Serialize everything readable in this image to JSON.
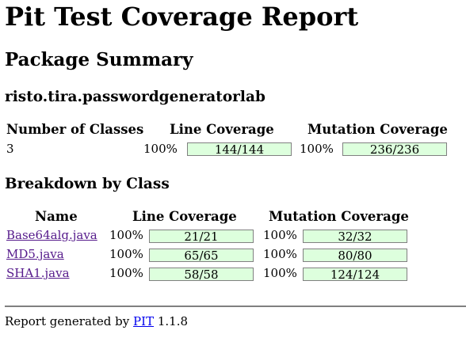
{
  "title": "Pit Test Coverage Report",
  "package_summary_heading": "Package Summary",
  "package_name": "risto.tira.passwordgeneratorlab",
  "summary": {
    "headers": {
      "classes": "Number of Classes",
      "line": "Line Coverage",
      "mutation": "Mutation Coverage"
    },
    "num_classes": "3",
    "line_percent": "100%",
    "line_ratio": "144/144",
    "mutation_percent": "100%",
    "mutation_ratio": "236/236"
  },
  "breakdown_heading": "Breakdown by Class",
  "breakdown": {
    "headers": {
      "name": "Name",
      "line": "Line Coverage",
      "mutation": "Mutation Coverage"
    },
    "rows": [
      {
        "name": "Base64alg.java",
        "line_percent": "100%",
        "line_ratio": "21/21",
        "mutation_percent": "100%",
        "mutation_ratio": "32/32"
      },
      {
        "name": "MD5.java",
        "line_percent": "100%",
        "line_ratio": "65/65",
        "mutation_percent": "100%",
        "mutation_ratio": "80/80"
      },
      {
        "name": "SHA1.java",
        "line_percent": "100%",
        "line_ratio": "58/58",
        "mutation_percent": "100%",
        "mutation_ratio": "124/124"
      }
    ]
  },
  "footer": {
    "prefix": "Report generated by",
    "link": "PIT",
    "version": "1.1.8"
  },
  "colors": {
    "coverage_fill": "#ddffdd",
    "coverage_border": "#808080",
    "visited_link": "#551a8b",
    "link": "#0000ee"
  }
}
